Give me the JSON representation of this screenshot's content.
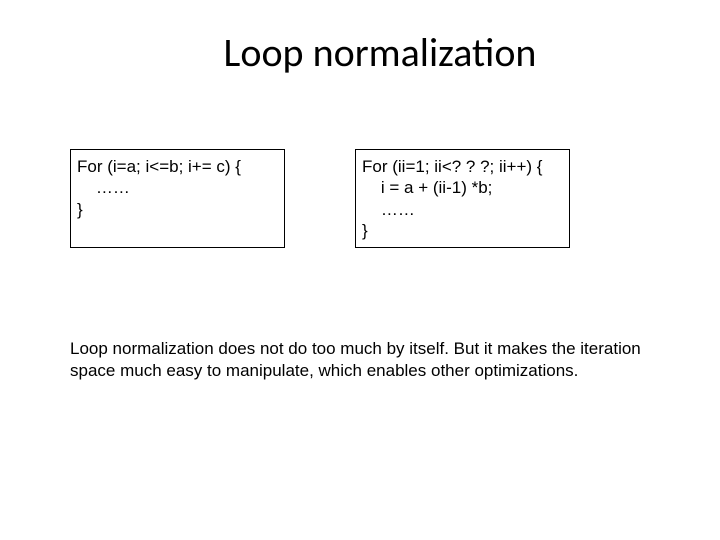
{
  "title": "Loop normalization",
  "code_left": "For (i=a; i<=b; i+= c) {\n    ……\n}",
  "code_right": "For (ii=1; ii<? ? ?; ii++) {\n    i = a + (ii-1) *b;\n    ……\n}",
  "explain": "Loop normalization does not do too much by itself.\nBut it makes the iteration space much easy to manipulate, which enables other optimizations.",
  "colors": {
    "background": "#ffffff",
    "text": "#000000",
    "border": "#000000"
  },
  "fonts": {
    "title_family": "Calibri",
    "title_size_pt": 30,
    "body_family": "Arial",
    "body_size_pt": 13
  }
}
